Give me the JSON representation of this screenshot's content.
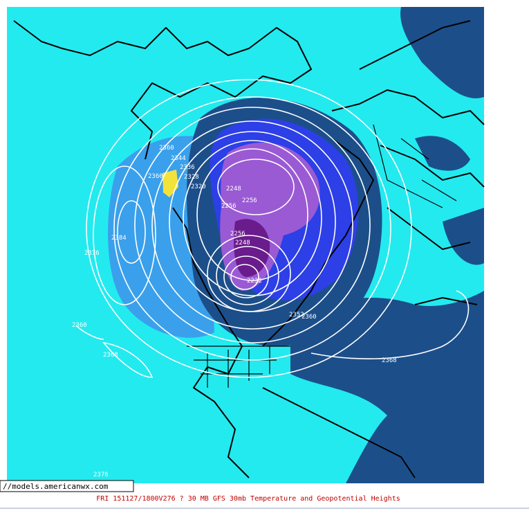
{
  "map": {
    "contour_labels": [
      2360,
      2344,
      2336,
      2360,
      2328,
      2320,
      2248,
      2256,
      2256,
      2384,
      2376,
      2256,
      2248,
      2232,
      2352,
      2360,
      2360,
      2368,
      2368,
      2376
    ],
    "watermark": "//models.americanwx.com",
    "caption": "FRI 151127/1800V276  ? 30 MB GFS 30mb Temperature and Geopotential Heights"
  }
}
